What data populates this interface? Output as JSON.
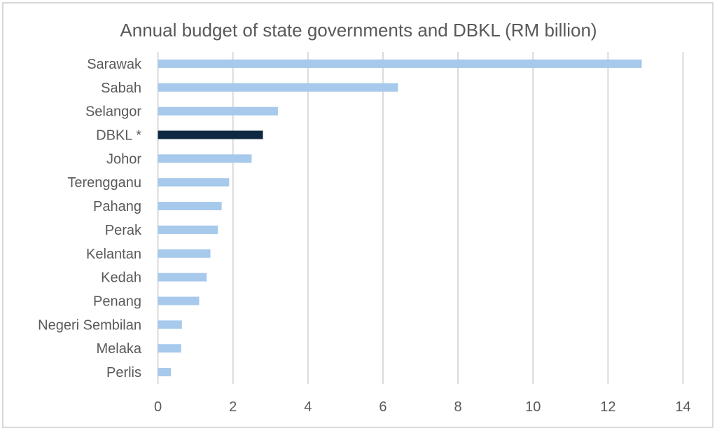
{
  "chart_data": {
    "type": "bar",
    "orientation": "horizontal",
    "title": "Annual budget of state governments and DBKL (RM billion)",
    "xlabel": "",
    "ylabel": "",
    "categories": [
      "Sarawak",
      "Sabah",
      "Selangor",
      "DBKL *",
      "Johor",
      "Terengganu",
      "Pahang",
      "Perak",
      "Kelantan",
      "Kedah",
      "Penang",
      "Negeri Sembilan",
      "Melaka",
      "Perlis"
    ],
    "values": [
      12.9,
      6.4,
      3.2,
      2.8,
      2.5,
      1.9,
      1.7,
      1.6,
      1.4,
      1.3,
      1.1,
      0.64,
      0.62,
      0.35
    ],
    "highlight": [
      "DBKL *"
    ],
    "xlim": [
      0,
      14
    ],
    "xticks": [
      0,
      2,
      4,
      6,
      8,
      10,
      12,
      14
    ],
    "xtick_labels": [
      "0",
      "2",
      "4",
      "6",
      "8",
      "10",
      "12",
      "14"
    ],
    "grid": "vertical",
    "legend": "none",
    "colors": {
      "bar": "#a6c9ec",
      "highlight_bar": "#0e2841",
      "grid": "#d9d9d9",
      "text": "#595959",
      "border": "#d9d9d9"
    }
  }
}
